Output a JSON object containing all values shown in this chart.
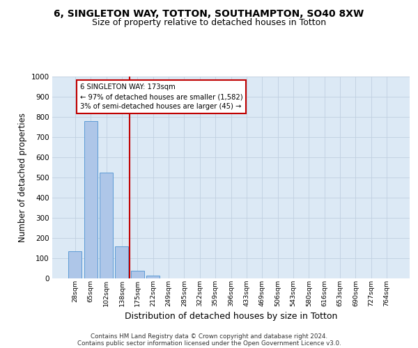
{
  "title1": "6, SINGLETON WAY, TOTTON, SOUTHAMPTON, SO40 8XW",
  "title2": "Size of property relative to detached houses in Totton",
  "xlabel": "Distribution of detached houses by size in Totton",
  "ylabel": "Number of detached properties",
  "bar_labels": [
    "28sqm",
    "65sqm",
    "102sqm",
    "138sqm",
    "175sqm",
    "212sqm",
    "249sqm",
    "285sqm",
    "322sqm",
    "359sqm",
    "396sqm",
    "433sqm",
    "469sqm",
    "506sqm",
    "543sqm",
    "580sqm",
    "616sqm",
    "653sqm",
    "690sqm",
    "727sqm",
    "764sqm"
  ],
  "bar_heights": [
    133,
    778,
    524,
    160,
    38,
    13,
    0,
    0,
    0,
    0,
    0,
    0,
    0,
    0,
    0,
    0,
    0,
    0,
    0,
    0,
    0
  ],
  "bar_color": "#aec6e8",
  "bar_edge_color": "#5b9bd5",
  "vline_x_idx": 3.5,
  "vline_color": "#c00000",
  "annotation_line1": "6 SINGLETON WAY: 173sqm",
  "annotation_line2": "← 97% of detached houses are smaller (1,582)",
  "annotation_line3": "3% of semi-detached houses are larger (45) →",
  "annotation_box_color": "#ffffff",
  "annotation_box_edge": "#c00000",
  "ylim": [
    0,
    1000
  ],
  "yticks": [
    0,
    100,
    200,
    300,
    400,
    500,
    600,
    700,
    800,
    900,
    1000
  ],
  "background_color": "#dce9f5",
  "footer_line1": "Contains HM Land Registry data © Crown copyright and database right 2024.",
  "footer_line2": "Contains public sector information licensed under the Open Government Licence v3.0.",
  "title1_fontsize": 10,
  "title2_fontsize": 9,
  "xlabel_fontsize": 9,
  "ylabel_fontsize": 8.5
}
